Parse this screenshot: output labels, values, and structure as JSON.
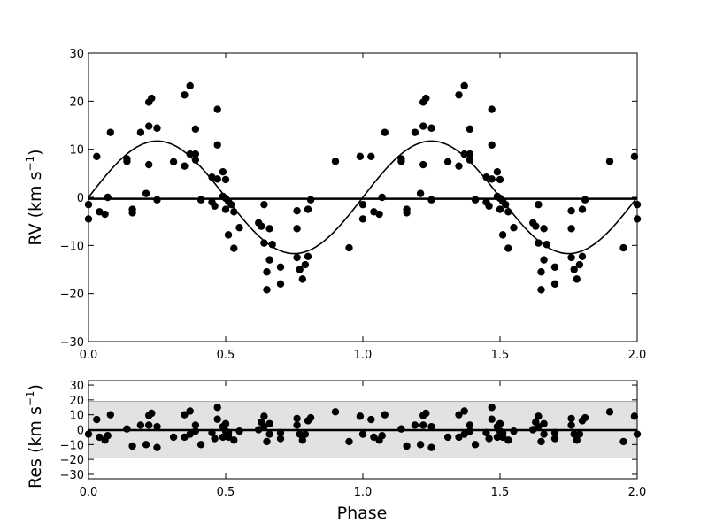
{
  "chart_data": [
    {
      "type": "scatter",
      "title": "",
      "xlabel": "",
      "ylabel": "RV (km s",
      "ylabel_sup": "−1",
      "ylabel_close": ")",
      "xlim": [
        0.0,
        2.0
      ],
      "ylim": [
        -30,
        30
      ],
      "xticks": [
        "0.0",
        "0.5",
        "1.0",
        "1.5",
        "2.0"
      ],
      "yticks": [
        "−30",
        "−20",
        "−10",
        "0",
        "10",
        "20",
        "30"
      ],
      "model_curve": {
        "type": "sinusoid",
        "amplitude": 11.7,
        "period": 1.0,
        "offset": 0.0,
        "zero_phase": 0.0
      },
      "zero_line": -0.3,
      "points": [
        [
          0.0,
          -1.5
        ],
        [
          0.0,
          -4.5
        ],
        [
          0.03,
          8.5
        ],
        [
          0.04,
          -3.0
        ],
        [
          0.06,
          -3.5
        ],
        [
          0.07,
          0.0
        ],
        [
          0.08,
          13.5
        ],
        [
          0.14,
          8.0
        ],
        [
          0.14,
          7.5
        ],
        [
          0.16,
          -2.5
        ],
        [
          0.16,
          -3.2
        ],
        [
          0.19,
          13.5
        ],
        [
          0.21,
          0.8
        ],
        [
          0.22,
          6.8
        ],
        [
          0.22,
          14.8
        ],
        [
          0.22,
          19.8
        ],
        [
          0.23,
          20.6
        ],
        [
          0.25,
          -0.5
        ],
        [
          0.25,
          14.4
        ],
        [
          0.31,
          7.4
        ],
        [
          0.35,
          21.3
        ],
        [
          0.35,
          6.5
        ],
        [
          0.37,
          9.0
        ],
        [
          0.37,
          23.2
        ],
        [
          0.39,
          9.0
        ],
        [
          0.39,
          7.8
        ],
        [
          0.39,
          14.2
        ],
        [
          0.41,
          -0.5
        ],
        [
          0.45,
          4.2
        ],
        [
          0.45,
          -1.0
        ],
        [
          0.46,
          -1.8
        ],
        [
          0.47,
          3.8
        ],
        [
          0.47,
          10.9
        ],
        [
          0.47,
          18.3
        ],
        [
          0.49,
          5.3
        ],
        [
          0.49,
          0.2
        ],
        [
          0.5,
          3.7
        ],
        [
          0.5,
          -0.2
        ],
        [
          0.5,
          -2.5
        ],
        [
          0.51,
          -0.8
        ],
        [
          0.51,
          -7.8
        ],
        [
          0.52,
          -1.5
        ],
        [
          0.53,
          -10.6
        ],
        [
          0.53,
          -3.0
        ],
        [
          0.55,
          -6.3
        ],
        [
          0.62,
          -5.3
        ],
        [
          0.63,
          -6.0
        ],
        [
          0.64,
          -1.5
        ],
        [
          0.64,
          -9.5
        ],
        [
          0.65,
          -19.2
        ],
        [
          0.65,
          -15.5
        ],
        [
          0.66,
          -13.0
        ],
        [
          0.66,
          -6.5
        ],
        [
          0.67,
          -9.8
        ],
        [
          0.7,
          -18.0
        ],
        [
          0.7,
          -14.5
        ],
        [
          0.76,
          -6.5
        ],
        [
          0.76,
          -2.8
        ],
        [
          0.76,
          -12.5
        ],
        [
          0.77,
          -15.0
        ],
        [
          0.78,
          -17.0
        ],
        [
          0.79,
          -14.0
        ],
        [
          0.8,
          -12.3
        ],
        [
          0.8,
          -2.5
        ],
        [
          0.81,
          -0.5
        ],
        [
          0.9,
          7.5
        ],
        [
          0.95,
          -10.5
        ],
        [
          0.99,
          8.5
        ],
        [
          1.0,
          -1.5
        ],
        [
          1.0,
          -4.5
        ],
        [
          1.03,
          8.5
        ],
        [
          1.04,
          -3.0
        ],
        [
          1.06,
          -3.5
        ],
        [
          1.07,
          0.0
        ],
        [
          1.08,
          13.5
        ],
        [
          1.14,
          8.0
        ],
        [
          1.14,
          7.5
        ],
        [
          1.16,
          -2.5
        ],
        [
          1.16,
          -3.2
        ],
        [
          1.19,
          13.5
        ],
        [
          1.21,
          0.8
        ],
        [
          1.22,
          6.8
        ],
        [
          1.22,
          14.8
        ],
        [
          1.22,
          19.8
        ],
        [
          1.23,
          20.6
        ],
        [
          1.25,
          -0.5
        ],
        [
          1.25,
          14.4
        ],
        [
          1.31,
          7.4
        ],
        [
          1.35,
          21.3
        ],
        [
          1.35,
          6.5
        ],
        [
          1.37,
          9.0
        ],
        [
          1.37,
          23.2
        ],
        [
          1.39,
          9.0
        ],
        [
          1.39,
          7.8
        ],
        [
          1.39,
          14.2
        ],
        [
          1.41,
          -0.5
        ],
        [
          1.45,
          4.2
        ],
        [
          1.45,
          -1.0
        ],
        [
          1.46,
          -1.8
        ],
        [
          1.47,
          3.8
        ],
        [
          1.47,
          10.9
        ],
        [
          1.47,
          18.3
        ],
        [
          1.49,
          5.3
        ],
        [
          1.49,
          0.2
        ],
        [
          1.5,
          3.7
        ],
        [
          1.5,
          -0.2
        ],
        [
          1.5,
          -2.5
        ],
        [
          1.51,
          -0.8
        ],
        [
          1.51,
          -7.8
        ],
        [
          1.52,
          -1.5
        ],
        [
          1.53,
          -10.6
        ],
        [
          1.53,
          -3.0
        ],
        [
          1.55,
          -6.3
        ],
        [
          1.62,
          -5.3
        ],
        [
          1.63,
          -6.0
        ],
        [
          1.64,
          -1.5
        ],
        [
          1.64,
          -9.5
        ],
        [
          1.65,
          -19.2
        ],
        [
          1.65,
          -15.5
        ],
        [
          1.66,
          -13.0
        ],
        [
          1.66,
          -6.5
        ],
        [
          1.67,
          -9.8
        ],
        [
          1.7,
          -18.0
        ],
        [
          1.7,
          -14.5
        ],
        [
          1.76,
          -6.5
        ],
        [
          1.76,
          -2.8
        ],
        [
          1.76,
          -12.5
        ],
        [
          1.77,
          -15.0
        ],
        [
          1.78,
          -17.0
        ],
        [
          1.79,
          -14.0
        ],
        [
          1.8,
          -12.3
        ],
        [
          1.8,
          -2.5
        ],
        [
          1.81,
          -0.5
        ],
        [
          1.9,
          7.5
        ],
        [
          1.95,
          -10.5
        ],
        [
          1.99,
          8.5
        ],
        [
          2.0,
          -1.5
        ],
        [
          2.0,
          -4.5
        ]
      ]
    },
    {
      "type": "scatter",
      "title": "",
      "xlabel": "Phase",
      "ylabel": "Res (km s",
      "ylabel_sup": "−1",
      "ylabel_close": ")",
      "xlim": [
        0.0,
        2.0
      ],
      "ylim": [
        -33,
        33
      ],
      "xticks": [
        "0.0",
        "0.5",
        "1.0",
        "1.5",
        "2.0"
      ],
      "yticks": [
        "−30",
        "−20",
        "−10",
        "0",
        "10",
        "20",
        "30"
      ],
      "ytick_values": [
        -30,
        -20,
        -10,
        0,
        10,
        20,
        30
      ],
      "band": [
        -19,
        19
      ],
      "zero_line": -0.3,
      "band_color": "#e2e2e2",
      "points": [
        [
          0.0,
          -3.0
        ],
        [
          0.03,
          6.8
        ],
        [
          0.04,
          -5.0
        ],
        [
          0.06,
          -7.0
        ],
        [
          0.07,
          -4.0
        ],
        [
          0.08,
          10.0
        ],
        [
          0.14,
          0.5
        ],
        [
          0.16,
          -11.0
        ],
        [
          0.19,
          3.0
        ],
        [
          0.21,
          -10.0
        ],
        [
          0.22,
          3.0
        ],
        [
          0.22,
          9.5
        ],
        [
          0.23,
          11.0
        ],
        [
          0.25,
          -12.0
        ],
        [
          0.25,
          2.0
        ],
        [
          0.31,
          -5.0
        ],
        [
          0.35,
          10.0
        ],
        [
          0.35,
          -5.0
        ],
        [
          0.37,
          -3.0
        ],
        [
          0.37,
          12.5
        ],
        [
          0.39,
          -1.0
        ],
        [
          0.39,
          3.0
        ],
        [
          0.41,
          -10.0
        ],
        [
          0.45,
          -2.0
        ],
        [
          0.46,
          -6.0
        ],
        [
          0.47,
          7.0
        ],
        [
          0.47,
          15.0
        ],
        [
          0.49,
          2.0
        ],
        [
          0.49,
          -5.0
        ],
        [
          0.5,
          4.0
        ],
        [
          0.5,
          -1.0
        ],
        [
          0.51,
          -5.0
        ],
        [
          0.51,
          -2.0
        ],
        [
          0.53,
          -7.0
        ],
        [
          0.55,
          -1.0
        ],
        [
          0.62,
          0.0
        ],
        [
          0.63,
          5.0
        ],
        [
          0.64,
          9.0
        ],
        [
          0.64,
          2.0
        ],
        [
          0.65,
          -8.0
        ],
        [
          0.66,
          -3.0
        ],
        [
          0.66,
          4.0
        ],
        [
          0.7,
          -6.0
        ],
        [
          0.7,
          -2.0
        ],
        [
          0.76,
          3.0
        ],
        [
          0.76,
          7.5
        ],
        [
          0.77,
          -3.0
        ],
        [
          0.78,
          -7.0
        ],
        [
          0.79,
          -3.0
        ],
        [
          0.8,
          6.0
        ],
        [
          0.81,
          8.0
        ],
        [
          0.9,
          12.0
        ],
        [
          0.95,
          -8.0
        ],
        [
          0.99,
          9.0
        ],
        [
          1.0,
          -3.0
        ],
        [
          1.03,
          6.8
        ],
        [
          1.04,
          -5.0
        ],
        [
          1.06,
          -7.0
        ],
        [
          1.07,
          -4.0
        ],
        [
          1.08,
          10.0
        ],
        [
          1.14,
          0.5
        ],
        [
          1.16,
          -11.0
        ],
        [
          1.19,
          3.0
        ],
        [
          1.21,
          -10.0
        ],
        [
          1.22,
          3.0
        ],
        [
          1.22,
          9.5
        ],
        [
          1.23,
          11.0
        ],
        [
          1.25,
          -12.0
        ],
        [
          1.25,
          2.0
        ],
        [
          1.31,
          -5.0
        ],
        [
          1.35,
          10.0
        ],
        [
          1.35,
          -5.0
        ],
        [
          1.37,
          -3.0
        ],
        [
          1.37,
          12.5
        ],
        [
          1.39,
          -1.0
        ],
        [
          1.39,
          3.0
        ],
        [
          1.41,
          -10.0
        ],
        [
          1.45,
          -2.0
        ],
        [
          1.46,
          -6.0
        ],
        [
          1.47,
          7.0
        ],
        [
          1.47,
          15.0
        ],
        [
          1.49,
          2.0
        ],
        [
          1.49,
          -5.0
        ],
        [
          1.5,
          4.0
        ],
        [
          1.5,
          -1.0
        ],
        [
          1.51,
          -5.0
        ],
        [
          1.51,
          -2.0
        ],
        [
          1.53,
          -7.0
        ],
        [
          1.55,
          -1.0
        ],
        [
          1.62,
          0.0
        ],
        [
          1.63,
          5.0
        ],
        [
          1.64,
          9.0
        ],
        [
          1.64,
          2.0
        ],
        [
          1.65,
          -8.0
        ],
        [
          1.66,
          -3.0
        ],
        [
          1.66,
          4.0
        ],
        [
          1.7,
          -6.0
        ],
        [
          1.7,
          -2.0
        ],
        [
          1.76,
          3.0
        ],
        [
          1.76,
          7.5
        ],
        [
          1.77,
          -3.0
        ],
        [
          1.78,
          -7.0
        ],
        [
          1.79,
          -3.0
        ],
        [
          1.8,
          6.0
        ],
        [
          1.81,
          8.0
        ],
        [
          1.9,
          12.0
        ],
        [
          1.95,
          -8.0
        ],
        [
          1.99,
          9.0
        ],
        [
          2.0,
          -3.0
        ]
      ]
    }
  ]
}
